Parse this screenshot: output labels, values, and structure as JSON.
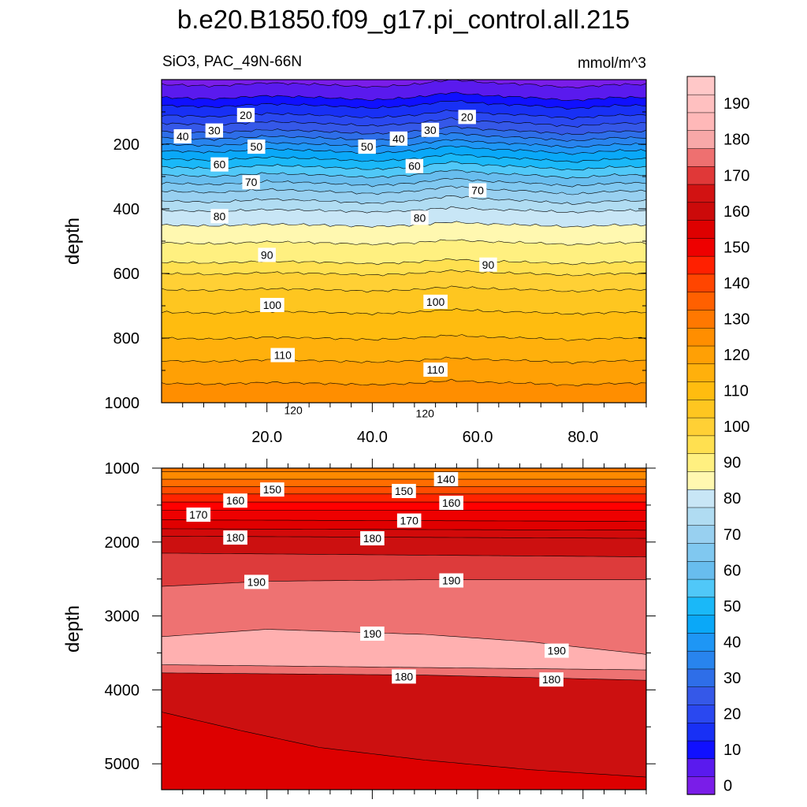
{
  "header": {
    "title": "b.e20.B1850.f09_g17.pi_control.all.215",
    "subtitle_left": "SiO3, PAC_49N-66N",
    "subtitle_right": "mmol/m^3"
  },
  "chart_data": [
    {
      "type": "heatmap",
      "panel": "upper",
      "ylabel": "depth",
      "xlabel": "",
      "xlim": [
        0,
        92
      ],
      "ylim": [
        1000,
        0
      ],
      "y_reversed": true,
      "x_ticks": [
        20,
        40,
        60,
        80
      ],
      "x_tick_labels": [
        "20.0",
        "40.0",
        "60.0",
        "80.0"
      ],
      "y_ticks": [
        200,
        400,
        600,
        800,
        1000
      ],
      "y_tick_labels": [
        "200",
        "400",
        "600",
        "800",
        "1000"
      ],
      "x_depth_offsets": [
        [
          0,
          0
        ],
        [
          10,
          5
        ],
        [
          20,
          -5
        ],
        [
          30,
          0
        ],
        [
          40,
          8
        ],
        [
          48,
          0
        ],
        [
          55,
          -15
        ],
        [
          62,
          -5
        ],
        [
          70,
          0
        ],
        [
          78,
          10
        ],
        [
          86,
          0
        ],
        [
          92,
          0
        ]
      ],
      "contour_depths": {
        "5": 15,
        "10": 55,
        "15": 80,
        "20": 110,
        "25": 135,
        "30": 160,
        "35": 180,
        "40": 200,
        "45": 220,
        "50": 245,
        "55": 270,
        "60": 295,
        "65": 320,
        "70": 345,
        "75": 375,
        "80": 405,
        "85": 450,
        "90": 505,
        "95": 565,
        "100": 600,
        "105": 650,
        "110": 720,
        "115": 800,
        "120": 870,
        "125": 940,
        "130": 1010
      },
      "contour_labels": [
        {
          "x": 4,
          "depth": 178,
          "text": "40"
        },
        {
          "x": 10,
          "depth": 160,
          "text": "30"
        },
        {
          "x": 16,
          "depth": 112,
          "text": "20"
        },
        {
          "x": 18,
          "depth": 210,
          "text": "50"
        },
        {
          "x": 11,
          "depth": 265,
          "text": "60"
        },
        {
          "x": 17,
          "depth": 320,
          "text": "70"
        },
        {
          "x": 11,
          "depth": 425,
          "text": "80"
        },
        {
          "x": 20,
          "depth": 545,
          "text": "90"
        },
        {
          "x": 21,
          "depth": 700,
          "text": "100"
        },
        {
          "x": 23,
          "depth": 855,
          "text": "110"
        },
        {
          "x": 25,
          "depth": 1025,
          "text": "120"
        },
        {
          "x": 39,
          "depth": 210,
          "text": "50"
        },
        {
          "x": 45,
          "depth": 185,
          "text": "40"
        },
        {
          "x": 51,
          "depth": 158,
          "text": "30"
        },
        {
          "x": 58,
          "depth": 118,
          "text": "20"
        },
        {
          "x": 48,
          "depth": 270,
          "text": "60"
        },
        {
          "x": 60,
          "depth": 345,
          "text": "70"
        },
        {
          "x": 49,
          "depth": 430,
          "text": "80"
        },
        {
          "x": 62,
          "depth": 575,
          "text": "90"
        },
        {
          "x": 52,
          "depth": 690,
          "text": "100"
        },
        {
          "x": 52,
          "depth": 900,
          "text": "110"
        },
        {
          "x": 50,
          "depth": 1035,
          "text": "120"
        }
      ]
    },
    {
      "type": "heatmap",
      "panel": "lower",
      "ylabel": "depth",
      "xlabel": "",
      "xlim": [
        0,
        92
      ],
      "ylim": [
        5350,
        1000
      ],
      "y_reversed": true,
      "y_ticks": [
        1000,
        2000,
        3000,
        4000,
        5000
      ],
      "y_tick_labels": [
        "1000",
        "2000",
        "3000",
        "4000",
        "5000"
      ],
      "boundaries": [
        {
          "level": 135,
          "x": [
            0,
            92
          ],
          "depth": [
            1050,
            1050
          ]
        },
        {
          "level": 140,
          "x": [
            0,
            92
          ],
          "depth": [
            1150,
            1150
          ]
        },
        {
          "level": 145,
          "x": [
            0,
            92
          ],
          "depth": [
            1250,
            1250
          ]
        },
        {
          "level": 150,
          "x": [
            0,
            92
          ],
          "depth": [
            1350,
            1350
          ]
        },
        {
          "level": 155,
          "x": [
            0,
            92
          ],
          "depth": [
            1460,
            1460
          ]
        },
        {
          "level": 160,
          "x": [
            0,
            92
          ],
          "depth": [
            1570,
            1570
          ]
        },
        {
          "level": 165,
          "x": [
            0,
            92
          ],
          "depth": [
            1700,
            1720
          ]
        },
        {
          "level": 170,
          "x": [
            0,
            92
          ],
          "depth": [
            1820,
            1840
          ]
        },
        {
          "level": 175,
          "x": [
            0,
            92
          ],
          "depth": [
            1920,
            1950
          ]
        },
        {
          "level": 180,
          "x": [
            0,
            92
          ],
          "depth": [
            2150,
            2200
          ]
        },
        {
          "level": 185,
          "x": [
            0,
            20,
            50,
            92
          ],
          "depth": [
            2600,
            2530,
            2510,
            2510
          ]
        },
        {
          "level": 190,
          "x": [
            0,
            20,
            50,
            70,
            92
          ],
          "depth": [
            3280,
            3180,
            3250,
            3350,
            3520
          ]
        },
        {
          "level": 195,
          "x": [
            0,
            92
          ],
          "depth": [
            3660,
            3730
          ]
        },
        {
          "level": 200,
          "x": [
            0,
            50,
            92
          ],
          "depth": [
            3770,
            3800,
            3870
          ]
        },
        {
          "level": 205,
          "x": [
            0,
            15,
            30,
            50,
            70,
            92
          ],
          "depth": [
            4300,
            4550,
            4780,
            4950,
            5080,
            5180
          ]
        }
      ],
      "contour_labels": [
        {
          "x": 21,
          "depth": 1300,
          "text": "150"
        },
        {
          "x": 14,
          "depth": 1450,
          "text": "160"
        },
        {
          "x": 7,
          "depth": 1640,
          "text": "170"
        },
        {
          "x": 14,
          "depth": 1950,
          "text": "180"
        },
        {
          "x": 18,
          "depth": 2550,
          "text": "190"
        },
        {
          "x": 54,
          "depth": 1160,
          "text": "140"
        },
        {
          "x": 46,
          "depth": 1320,
          "text": "150"
        },
        {
          "x": 55,
          "depth": 1480,
          "text": "160"
        },
        {
          "x": 47,
          "depth": 1720,
          "text": "170"
        },
        {
          "x": 40,
          "depth": 1960,
          "text": "180"
        },
        {
          "x": 55,
          "depth": 2530,
          "text": "190"
        },
        {
          "x": 40,
          "depth": 3250,
          "text": "190"
        },
        {
          "x": 46,
          "depth": 3830,
          "text": "180"
        },
        {
          "x": 75,
          "depth": 3480,
          "text": "190"
        },
        {
          "x": 74,
          "depth": 3870,
          "text": "180"
        }
      ]
    }
  ],
  "colorbar": {
    "levels": [
      0,
      5,
      10,
      15,
      20,
      25,
      30,
      35,
      40,
      45,
      50,
      55,
      60,
      65,
      70,
      75,
      80,
      85,
      90,
      95,
      100,
      105,
      110,
      115,
      120,
      125,
      130,
      135,
      140,
      145,
      150,
      155,
      160,
      165,
      170,
      175,
      180,
      185,
      190,
      195
    ],
    "labels": [
      "0",
      "10",
      "20",
      "30",
      "40",
      "50",
      "60",
      "70",
      "80",
      "90",
      "100",
      "110",
      "120",
      "130",
      "140",
      "150",
      "160",
      "170",
      "180",
      "190"
    ],
    "colors": [
      "#7a1de8",
      "#5a1aee",
      "#1010ff",
      "#1830f5",
      "#2a48f0",
      "#3558e8",
      "#2e6ee8",
      "#2884ee",
      "#1e96f5",
      "#0aa8f8",
      "#1ab8f8",
      "#50c8f8",
      "#68bdee",
      "#80c8f0",
      "#98d0f0",
      "#b0dcf2",
      "#c8e6f6",
      "#fff8b0",
      "#fff080",
      "#ffe050",
      "#ffd035",
      "#fec620",
      "#ffbc0f",
      "#ffb00c",
      "#ffa005",
      "#ff8e00",
      "#ff7800",
      "#ff6000",
      "#ff4500",
      "#ff2000",
      "#ee0000",
      "#de0000",
      "#cc0a0a",
      "#d21212",
      "#e03838",
      "#ee7070",
      "#f8a8a8",
      "#ffb8b8",
      "#ffc0c0",
      "#ffc8c8"
    ]
  }
}
